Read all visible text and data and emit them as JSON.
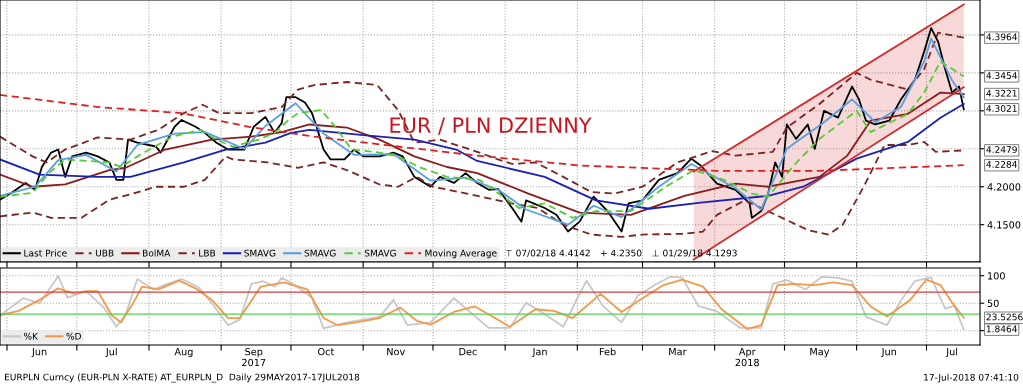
{
  "chart_data": [
    {
      "type": "line",
      "title": "EUR / PLN DZIENNY",
      "xlim": [
        "2017-05-29",
        "2018-07-24"
      ],
      "ylim": [
        4.101,
        4.446
      ],
      "xticks": [
        {
          "value": "2017-06-01",
          "label": null
        },
        {
          "value": "2017-07-01",
          "label": null
        },
        {
          "value": "2017-08-01",
          "label": null
        },
        {
          "value": "2017-09-01",
          "label": null
        },
        {
          "value": "2017-10-01",
          "label": null
        },
        {
          "value": "2017-11-01",
          "label": null
        },
        {
          "value": "2017-12-01",
          "label": null
        },
        {
          "value": "2018-01-01",
          "label": null
        },
        {
          "value": "2018-02-01",
          "label": null
        },
        {
          "value": "2018-03-01",
          "label": null
        },
        {
          "value": "2018-04-01",
          "label": null
        },
        {
          "value": "2018-05-01",
          "label": null
        },
        {
          "value": "2018-06-01",
          "label": null
        },
        {
          "value": "2018-07-01",
          "label": null
        }
      ],
      "yticks": [
        {
          "value": 4.15,
          "label": "4.1500"
        },
        {
          "value": 4.2,
          "label": "4.2000"
        },
        {
          "value": 4.25,
          "label": null
        },
        {
          "value": 4.3,
          "label": null
        },
        {
          "value": 4.35,
          "label": null
        },
        {
          "value": 4.4,
          "label": null
        }
      ],
      "tick_labels": "y",
      "grid": true,
      "legend": "bottom left",
      "series": [
        {
          "name": "Last Price",
          "color": "#000000",
          "x": [
            "2017-05-29",
            "2017-06-03",
            "2017-06-09",
            "2017-06-13",
            "2017-06-16",
            "2017-06-20",
            "2017-06-23",
            "2017-06-26",
            "2017-06-29",
            "2017-07-05",
            "2017-07-10",
            "2017-07-15",
            "2017-07-18",
            "2017-07-21",
            "2017-07-23",
            "2017-07-27",
            "2017-08-04",
            "2017-08-06",
            "2017-08-12",
            "2017-08-15",
            "2017-08-21",
            "2017-08-25",
            "2017-08-30",
            "2017-09-04",
            "2017-09-11",
            "2017-09-15",
            "2017-09-20",
            "2017-09-24",
            "2017-09-27",
            "2017-09-29",
            "2017-10-03",
            "2017-10-07",
            "2017-10-10",
            "2017-10-12",
            "2017-10-15",
            "2017-10-18",
            "2017-10-24",
            "2017-10-28",
            "2017-11-01",
            "2017-11-08",
            "2017-11-14",
            "2017-11-18",
            "2017-11-23",
            "2017-11-30",
            "2017-12-04",
            "2017-12-10",
            "2017-12-15",
            "2017-12-20",
            "2017-12-25",
            "2017-12-29",
            "2018-01-04",
            "2018-01-08",
            "2018-01-10",
            "2018-01-18",
            "2018-01-23",
            "2018-01-28",
            "2018-02-02",
            "2018-02-08",
            "2018-02-14",
            "2018-02-20",
            "2018-02-23",
            "2018-03-01",
            "2018-03-08",
            "2018-03-16",
            "2018-03-22",
            "2018-03-26",
            "2018-04-02",
            "2018-04-10",
            "2018-04-16",
            "2018-04-17",
            "2018-04-21",
            "2018-04-24",
            "2018-04-27",
            "2018-04-30",
            "2018-05-02",
            "2018-05-06",
            "2018-05-11",
            "2018-05-14",
            "2018-05-18",
            "2018-05-24",
            "2018-05-30",
            "2018-06-02",
            "2018-06-05",
            "2018-06-09",
            "2018-06-15",
            "2018-06-20",
            "2018-06-26",
            "2018-06-30",
            "2018-07-03",
            "2018-07-06",
            "2018-07-09",
            "2018-07-12",
            "2018-07-15",
            "2018-07-17"
          ],
          "values": [
            4.183,
            4.192,
            4.205,
            4.196,
            4.226,
            4.245,
            4.249,
            4.213,
            4.24,
            4.245,
            4.24,
            4.232,
            4.209,
            4.209,
            4.262,
            4.258,
            4.253,
            4.245,
            4.279,
            4.288,
            4.279,
            4.271,
            4.258,
            4.249,
            4.249,
            4.279,
            4.292,
            4.271,
            4.284,
            4.318,
            4.318,
            4.311,
            4.297,
            4.279,
            4.249,
            4.236,
            4.236,
            4.249,
            4.24,
            4.24,
            4.245,
            4.24,
            4.213,
            4.2,
            4.213,
            4.205,
            4.218,
            4.205,
            4.196,
            4.197,
            4.172,
            4.154,
            4.182,
            4.172,
            4.163,
            4.141,
            4.154,
            4.187,
            4.168,
            4.141,
            4.178,
            4.182,
            4.209,
            4.218,
            4.237,
            4.228,
            4.204,
            4.196,
            4.178,
            4.159,
            4.168,
            4.191,
            4.232,
            4.213,
            4.282,
            4.263,
            4.282,
            4.25,
            4.3,
            4.291,
            4.332,
            4.315,
            4.287,
            4.282,
            4.287,
            4.315,
            4.341,
            4.378,
            4.409,
            4.391,
            4.355,
            4.324,
            4.332,
            4.3021
          ]
        },
        {
          "name": "UBB",
          "color": "#7a2424",
          "line_style": "dashed",
          "x": [
            "2017-05-29",
            "2017-06-12",
            "2017-06-18",
            "2017-06-26",
            "2017-07-10",
            "2017-07-24",
            "2017-08-05",
            "2017-08-16",
            "2017-08-24",
            "2017-08-31",
            "2017-09-14",
            "2017-09-27",
            "2017-10-04",
            "2017-10-11",
            "2017-10-25",
            "2017-11-07",
            "2017-11-16",
            "2017-11-23",
            "2017-12-04",
            "2017-12-17",
            "2017-12-20",
            "2017-12-28",
            "2018-01-04",
            "2018-01-14",
            "2018-01-26",
            "2018-02-07",
            "2018-02-17",
            "2018-03-01",
            "2018-03-16",
            "2018-03-31",
            "2018-04-10",
            "2018-04-26",
            "2018-05-02",
            "2018-05-16",
            "2018-06-01",
            "2018-06-07",
            "2018-06-23",
            "2018-06-30",
            "2018-07-06",
            "2018-07-17"
          ],
          "values": [
            4.266,
            4.24,
            4.232,
            4.249,
            4.265,
            4.262,
            4.275,
            4.297,
            4.308,
            4.297,
            4.297,
            4.305,
            4.328,
            4.334,
            4.338,
            4.334,
            4.301,
            4.258,
            4.262,
            4.249,
            4.246,
            4.237,
            4.23,
            4.232,
            4.213,
            4.193,
            4.191,
            4.2,
            4.232,
            4.247,
            4.241,
            4.246,
            4.278,
            4.309,
            4.35,
            4.341,
            4.328,
            4.355,
            4.403,
            4.3964
          ]
        },
        {
          "name": "BolMA",
          "color": "#8b1a1a",
          "x": [
            "2017-05-29",
            "2017-06-12",
            "2017-06-26",
            "2017-07-15",
            "2017-07-22",
            "2017-08-08",
            "2017-08-28",
            "2017-09-14",
            "2017-09-27",
            "2017-10-09",
            "2017-10-25",
            "2017-11-08",
            "2017-11-23",
            "2017-12-07",
            "2017-12-20",
            "2018-01-11",
            "2018-02-02",
            "2018-02-24",
            "2018-03-19",
            "2018-04-10",
            "2018-04-24",
            "2018-05-16",
            "2018-05-28",
            "2018-06-07",
            "2018-06-23",
            "2018-07-07",
            "2018-07-17"
          ],
          "values": [
            4.216,
            4.2,
            4.203,
            4.222,
            4.225,
            4.249,
            4.262,
            4.266,
            4.272,
            4.282,
            4.278,
            4.262,
            4.24,
            4.226,
            4.218,
            4.191,
            4.166,
            4.163,
            4.188,
            4.204,
            4.2,
            4.213,
            4.241,
            4.287,
            4.296,
            4.324,
            4.3221
          ]
        },
        {
          "name": "LBB",
          "color": "#7a2424",
          "line_style": "dashed",
          "x": [
            "2017-05-29",
            "2017-06-12",
            "2017-06-20",
            "2017-07-03",
            "2017-07-15",
            "2017-07-24",
            "2017-08-04",
            "2017-08-16",
            "2017-08-25",
            "2017-09-03",
            "2017-09-06",
            "2017-09-21",
            "2017-10-04",
            "2017-10-15",
            "2017-10-25",
            "2017-11-08",
            "2017-11-16",
            "2017-11-24",
            "2017-12-01",
            "2017-12-14",
            "2017-12-20",
            "2018-01-04",
            "2018-01-15",
            "2018-01-26",
            "2018-02-07",
            "2018-02-20",
            "2018-03-01",
            "2018-03-19",
            "2018-03-27",
            "2018-04-02",
            "2018-04-14",
            "2018-04-30",
            "2018-05-11",
            "2018-05-20",
            "2018-05-26",
            "2018-06-04",
            "2018-06-13",
            "2018-06-23",
            "2018-06-30",
            "2018-07-05",
            "2018-07-17"
          ],
          "values": [
            4.161,
            4.166,
            4.159,
            4.159,
            4.183,
            4.19,
            4.2,
            4.2,
            4.209,
            4.24,
            4.236,
            4.232,
            4.225,
            4.232,
            4.222,
            4.203,
            4.2,
            4.213,
            4.2,
            4.192,
            4.188,
            4.178,
            4.172,
            4.15,
            4.137,
            4.134,
            4.137,
            4.138,
            4.141,
            4.163,
            4.182,
            4.159,
            4.143,
            4.137,
            4.15,
            4.2,
            4.255,
            4.255,
            4.259,
            4.246,
            4.2479
          ]
        },
        {
          "name": "SMAVG",
          "color": "#1a22b4",
          "x": [
            "2017-05-29",
            "2017-06-15",
            "2017-07-10",
            "2017-07-24",
            "2017-08-16",
            "2017-09-03",
            "2017-09-20",
            "2017-10-01",
            "2017-10-09",
            "2017-11-01",
            "2017-11-23",
            "2017-12-11",
            "2017-12-20",
            "2018-01-18",
            "2018-02-09",
            "2018-03-04",
            "2018-03-26",
            "2018-04-24",
            "2018-05-09",
            "2018-06-01",
            "2018-06-23",
            "2018-07-07",
            "2018-07-17"
          ],
          "values": [
            4.236,
            4.216,
            4.213,
            4.213,
            4.232,
            4.249,
            4.258,
            4.271,
            4.275,
            4.268,
            4.262,
            4.249,
            4.234,
            4.213,
            4.182,
            4.171,
            4.179,
            4.188,
            4.2,
            4.237,
            4.259,
            4.291,
            4.309
          ]
        },
        {
          "name": "SMAVG",
          "color": "#5aa0e0",
          "x": [
            "2017-05-29",
            "2017-06-13",
            "2017-06-23",
            "2017-07-05",
            "2017-07-18",
            "2017-07-27",
            "2017-08-12",
            "2017-08-25",
            "2017-09-11",
            "2017-09-20",
            "2017-10-03",
            "2017-10-15",
            "2017-10-28",
            "2017-11-14",
            "2017-11-30",
            "2017-12-15",
            "2017-12-29",
            "2018-01-10",
            "2018-01-28",
            "2018-02-08",
            "2018-02-20",
            "2018-03-08",
            "2018-03-22",
            "2018-04-10",
            "2018-04-21",
            "2018-05-02",
            "2018-05-18",
            "2018-05-30",
            "2018-06-09",
            "2018-06-20",
            "2018-06-30",
            "2018-07-03",
            "2018-07-12",
            "2018-07-17"
          ],
          "values": [
            4.188,
            4.2,
            4.235,
            4.242,
            4.22,
            4.255,
            4.27,
            4.272,
            4.25,
            4.28,
            4.31,
            4.27,
            4.242,
            4.243,
            4.208,
            4.212,
            4.196,
            4.17,
            4.15,
            4.175,
            4.16,
            4.2,
            4.23,
            4.198,
            4.17,
            4.25,
            4.285,
            4.315,
            4.285,
            4.305,
            4.365,
            4.395,
            4.34,
            4.318
          ]
        },
        {
          "name": "SMAVG",
          "color": "#55cc33",
          "line_style": "dashed",
          "x": [
            "2017-05-29",
            "2017-06-12",
            "2017-06-19",
            "2017-06-26",
            "2017-07-15",
            "2017-07-20",
            "2017-07-27",
            "2017-08-11",
            "2017-08-23",
            "2017-08-30",
            "2017-09-06",
            "2017-09-17",
            "2017-09-24",
            "2017-09-30",
            "2017-10-04",
            "2017-10-14",
            "2017-10-20",
            "2017-10-27",
            "2017-11-08",
            "2017-11-16",
            "2017-11-25",
            "2017-12-07",
            "2017-12-21",
            "2018-01-07",
            "2018-01-18",
            "2018-01-30",
            "2018-02-09",
            "2018-02-24",
            "2018-03-11",
            "2018-03-23",
            "2018-04-05",
            "2018-04-17",
            "2018-04-24",
            "2018-05-05",
            "2018-05-16",
            "2018-06-01",
            "2018-06-07",
            "2018-06-23",
            "2018-06-30",
            "2018-07-07",
            "2018-07-17"
          ],
          "values": [
            4.187,
            4.192,
            4.218,
            4.236,
            4.232,
            4.226,
            4.24,
            4.266,
            4.275,
            4.262,
            4.253,
            4.262,
            4.271,
            4.288,
            4.297,
            4.301,
            4.279,
            4.249,
            4.245,
            4.24,
            4.226,
            4.213,
            4.209,
            4.172,
            4.178,
            4.159,
            4.168,
            4.168,
            4.2,
            4.222,
            4.209,
            4.191,
            4.187,
            4.228,
            4.263,
            4.3,
            4.272,
            4.296,
            4.324,
            4.365,
            4.3454
          ]
        },
        {
          "name": "Moving Average",
          "color": "#e02020",
          "line_style": "dashed",
          "x": [
            "2017-05-29",
            "2017-07-10",
            "2017-08-15",
            "2017-09-13",
            "2017-10-11",
            "2017-11-16",
            "2017-12-20",
            "2018-02-02",
            "2018-04-02",
            "2018-05-16",
            "2018-07-17"
          ],
          "values": [
            4.321,
            4.305,
            4.297,
            4.279,
            4.266,
            4.253,
            4.241,
            4.228,
            4.221,
            4.221,
            4.2284
          ]
        },
        {
          "color": "#d42a2a",
          "x": [
            "2018-03-23",
            "2018-07-17"
          ],
          "values": [
            4.22,
            4.44
          ],
          "lower": [
            4.104,
            4.331
          ],
          "upper": [
            4.22,
            4.44
          ]
        },
        {
          "color": "#d42a2a",
          "x": [
            "2018-03-23",
            "2018-07-17"
          ],
          "values": [
            4.104,
            4.331
          ]
        }
      ],
      "annotations": [
        "⊤ 07/02/18 4.4142",
        "+ 4.2350",
        "⊥ 01/29/18 4.1293",
        {
          "text": "4.3964",
          "x": "2018-07-17",
          "y": 4.3964
        },
        {
          "text": "4.3454",
          "x": "2018-07-17",
          "y": 4.3454
        },
        {
          "text": "4.3221",
          "x": "2018-07-17",
          "y": 4.3221
        },
        {
          "text": "4.3021",
          "x": "2018-07-17",
          "y": 4.3021
        },
        {
          "text": "4.2479",
          "x": "2018-07-17",
          "y": 4.2479
        },
        {
          "text": "4.2284",
          "x": "2018-07-17",
          "y": 4.2284
        }
      ]
    },
    {
      "type": "line",
      "xlim": [
        "2017-05-29",
        "2018-07-24"
      ],
      "ylim": [
        -26,
        114
      ],
      "xticks": [
        {
          "value": "2017-06-01",
          "label": null
        },
        {
          "value": "2017-07-01",
          "label": null
        },
        {
          "value": "2017-08-01",
          "label": null
        },
        {
          "value": "2017-09-01",
          "label": null
        },
        {
          "value": "2017-10-01",
          "label": null
        },
        {
          "value": "2017-11-01",
          "label": null
        },
        {
          "value": "2017-12-01",
          "label": null
        },
        {
          "value": "2018-01-01",
          "label": null
        },
        {
          "value": "2018-02-01",
          "label": null
        },
        {
          "value": "2018-03-01",
          "label": null
        },
        {
          "value": "2018-04-01",
          "label": null
        },
        {
          "value": "2018-05-01",
          "label": null
        },
        {
          "value": "2018-06-01",
          "label": null
        },
        {
          "value": "2018-07-01",
          "label": null
        },
        {
          "value": "2017-06-15",
          "label": "Jun"
        },
        {
          "value": "2017-07-16",
          "label": "Jul"
        },
        {
          "value": "2017-08-16",
          "label": "Aug"
        },
        {
          "value": "2017-09-15",
          "label": "Sep\n2017"
        },
        {
          "value": "2017-10-16",
          "label": "Oct"
        },
        {
          "value": "2017-11-15",
          "label": "Nov"
        },
        {
          "value": "2017-12-16",
          "label": "Dec"
        },
        {
          "value": "2018-01-16",
          "label": "Jan"
        },
        {
          "value": "2018-02-14",
          "label": "Feb"
        },
        {
          "value": "2018-03-16",
          "label": "Mar"
        },
        {
          "value": "2018-04-15",
          "label": "Apr\n2018"
        },
        {
          "value": "2018-05-16",
          "label": "May"
        },
        {
          "value": "2018-06-15",
          "label": "Jun"
        },
        {
          "value": "2018-07-12",
          "label": "Jul"
        }
      ],
      "yticks": [
        {
          "value": 0,
          "label": null
        },
        50,
        100
      ],
      "grid": true,
      "legend": "bottom left",
      "ref_lines": [
        {
          "axis": "y",
          "value": 70,
          "color": "#d04040"
        },
        {
          "axis": "y",
          "value": 30,
          "color": "#55cc55"
        }
      ],
      "series": [
        {
          "name": "%K",
          "color": "#c8c8c8",
          "x": [
            "2017-05-29",
            "2017-06-08",
            "2017-06-15",
            "2017-06-23",
            "2017-06-27",
            "2017-07-05",
            "2017-07-13",
            "2017-07-18",
            "2017-07-22",
            "2017-07-27",
            "2017-08-03",
            "2017-08-09",
            "2017-08-15",
            "2017-08-22",
            "2017-08-28",
            "2017-09-04",
            "2017-09-09",
            "2017-09-14",
            "2017-09-19",
            "2017-09-24",
            "2017-09-27",
            "2017-10-02",
            "2017-10-10",
            "2017-10-15",
            "2017-10-25",
            "2017-11-08",
            "2017-11-14",
            "2017-11-20",
            "2017-11-30",
            "2017-12-10",
            "2017-12-18",
            "2017-12-25",
            "2018-01-03",
            "2018-01-10",
            "2018-01-18",
            "2018-01-26",
            "2018-02-01",
            "2018-02-05",
            "2018-02-12",
            "2018-02-20",
            "2018-02-27",
            "2018-03-07",
            "2018-03-13",
            "2018-03-18",
            "2018-03-25",
            "2018-04-02",
            "2018-04-12",
            "2018-04-21",
            "2018-04-26",
            "2018-05-02",
            "2018-05-10",
            "2018-05-17",
            "2018-05-24",
            "2018-05-30",
            "2018-06-05",
            "2018-06-14",
            "2018-06-20",
            "2018-06-26",
            "2018-07-03",
            "2018-07-09",
            "2018-07-13",
            "2018-07-17"
          ],
          "values": [
            28,
            59,
            50,
            99,
            60,
            72,
            40,
            7,
            30,
            94,
            75,
            85,
            94,
            80,
            50,
            10,
            20,
            85,
            90,
            80,
            96,
            85,
            60,
            4,
            15,
            25,
            56,
            10,
            15,
            59,
            30,
            5,
            5,
            51,
            30,
            7,
            59,
            91,
            45,
            15,
            64,
            85,
            98,
            97,
            45,
            35,
            5,
            5,
            85,
            92,
            75,
            98,
            96,
            90,
            25,
            10,
            55,
            90,
            97,
            40,
            45,
            1.8464
          ]
        },
        {
          "name": "%D",
          "color": "#f39a4a",
          "x": [
            "2017-05-29",
            "2017-06-06",
            "2017-06-15",
            "2017-06-23",
            "2017-06-30",
            "2017-07-05",
            "2017-07-10",
            "2017-07-16",
            "2017-07-20",
            "2017-07-26",
            "2017-07-29",
            "2017-08-05",
            "2017-08-14",
            "2017-08-21",
            "2017-08-28",
            "2017-09-04",
            "2017-09-09",
            "2017-09-18",
            "2017-09-28",
            "2017-10-08",
            "2017-10-15",
            "2017-10-21",
            "2017-10-29",
            "2017-11-08",
            "2017-11-17",
            "2017-11-24",
            "2017-11-30",
            "2017-12-10",
            "2017-12-19",
            "2017-12-31",
            "2018-01-03",
            "2018-01-14",
            "2018-01-22",
            "2018-01-30",
            "2018-02-11",
            "2018-02-20",
            "2018-03-01",
            "2018-03-10",
            "2018-03-18",
            "2018-03-27",
            "2018-04-04",
            "2018-04-15",
            "2018-04-21",
            "2018-04-28",
            "2018-05-05",
            "2018-05-14",
            "2018-05-22",
            "2018-05-30",
            "2018-06-07",
            "2018-06-14",
            "2018-06-24",
            "2018-07-01",
            "2018-07-07",
            "2018-07-12",
            "2018-07-17"
          ],
          "values": [
            28,
            36,
            56,
            77,
            67,
            72,
            72,
            28,
            15,
            56,
            80,
            75,
            91,
            77,
            56,
            23,
            23,
            80,
            88,
            75,
            23,
            10,
            15,
            23,
            42,
            18,
            11,
            34,
            44,
            15,
            7,
            39,
            36,
            23,
            67,
            34,
            59,
            83,
            93,
            80,
            39,
            3,
            10,
            83,
            85,
            83,
            88,
            83,
            44,
            26,
            56,
            93,
            83,
            51,
            23.5256
          ]
        }
      ],
      "annotations": [
        "EURPLN Curncy (EUR-PLN X-RATE) AT_EURPLN_D  Daily 29MAY2017-17JUL2018",
        "17-Jul-2018 07:41:10",
        {
          "text": "23.5256",
          "x": "2018-07-17",
          "y": 23.5256
        },
        {
          "text": "1.8464",
          "x": "2018-07-17",
          "y": 1.8464
        }
      ]
    }
  ]
}
